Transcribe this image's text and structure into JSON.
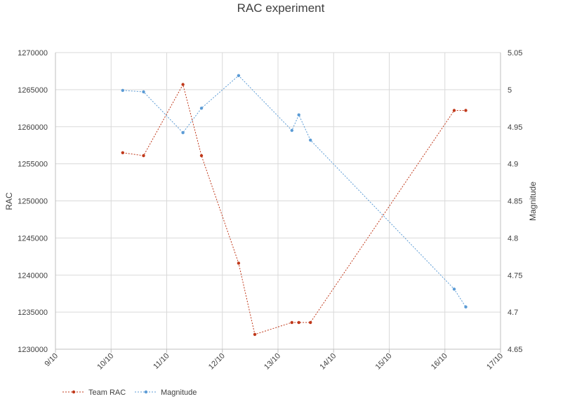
{
  "chart_data": {
    "type": "line",
    "title": "RAC experiment",
    "xlabel": "",
    "ylabel": "RAC",
    "y2label": "Magnitude",
    "x_axis_type": "date",
    "x_ticks": [
      "9/10",
      "10/10",
      "11/10",
      "12/10",
      "13/10",
      "14/10",
      "15/10",
      "16/10",
      "17/10"
    ],
    "xlim": [
      "2014-10-09",
      "2014-10-17"
    ],
    "ylim": [
      1230000,
      1270000
    ],
    "y_ticks": [
      1230000,
      1235000,
      1240000,
      1245000,
      1250000,
      1255000,
      1260000,
      1265000,
      1270000
    ],
    "y2lim": [
      4.65,
      5.05
    ],
    "y2_ticks": [
      "4.65",
      "4.7",
      "4.75",
      "4.8",
      "4.85",
      "4.9",
      "4.95",
      "5",
      "5.05"
    ],
    "grid": true,
    "legend": "bottom-left",
    "series": [
      {
        "name": "Team RAC",
        "axis": "left",
        "color": "#c0391b",
        "x": [
          "2014-10-10 05:00",
          "2014-10-10 14:00",
          "2014-10-11 07:00",
          "2014-10-11 15:00",
          "2014-10-12 07:00",
          "2014-10-12 14:00",
          "2014-10-13 06:00",
          "2014-10-13 09:00",
          "2014-10-13 14:00",
          "2014-10-16 04:00",
          "2014-10-16 09:00"
        ],
        "values": [
          1256500,
          1256100,
          1265700,
          1256100,
          1241600,
          1232000,
          1233600,
          1233600,
          1233600,
          1262200,
          1262200
        ]
      },
      {
        "name": "Magnitude",
        "axis": "right",
        "color": "#5b9bd5",
        "x": [
          "2014-10-10 05:00",
          "2014-10-10 14:00",
          "2014-10-11 07:00",
          "2014-10-11 15:00",
          "2014-10-12 07:00",
          "2014-10-13 06:00",
          "2014-10-13 09:00",
          "2014-10-13 14:00",
          "2014-10-16 04:00",
          "2014-10-16 09:00"
        ],
        "values": [
          4.999,
          4.997,
          4.942,
          4.975,
          5.019,
          4.945,
          4.966,
          4.932,
          4.731,
          4.707
        ]
      }
    ]
  }
}
